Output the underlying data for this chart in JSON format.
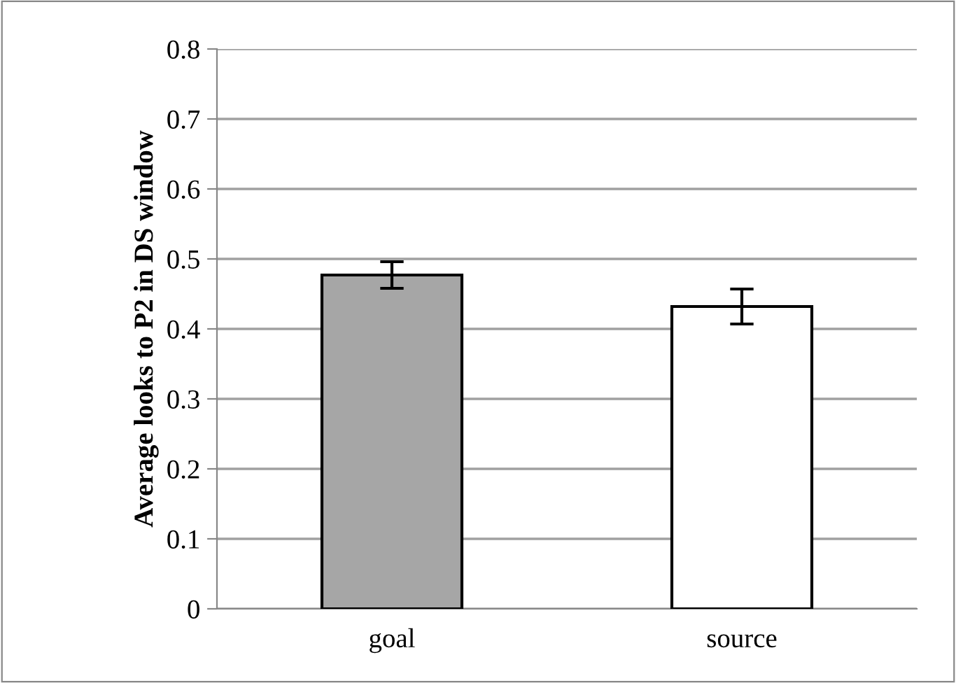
{
  "chart_data": {
    "type": "bar",
    "ylabel": "Average looks to P2 in DS window",
    "categories": [
      "goal",
      "source"
    ],
    "values": [
      0.477,
      0.432
    ],
    "errors": [
      0.019,
      0.025
    ],
    "colors": [
      "#a6a6a6",
      "#ffffff"
    ],
    "ylim": [
      0,
      0.8
    ],
    "yticks": [
      {
        "value": 0,
        "label": "0"
      },
      0.1,
      0.2,
      0.3,
      0.4,
      0.5,
      0.6,
      0.7,
      0.8
    ],
    "grid": "y"
  }
}
